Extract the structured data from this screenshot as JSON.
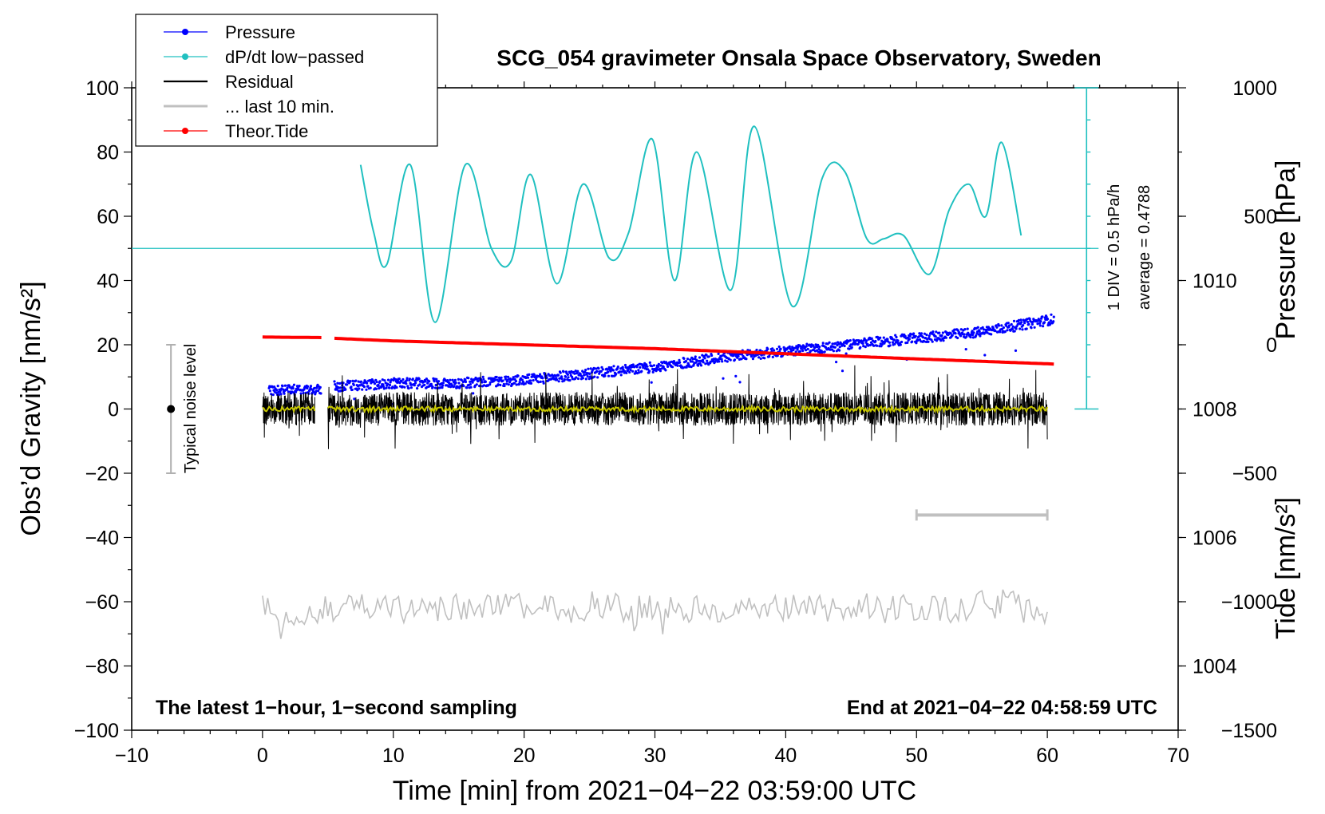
{
  "chart_data": {
    "type": "line",
    "title": "SCG_054 gravimeter Onsala Space Observatory, Sweden",
    "xlabel": "Time [min] from 2021−04−22 03:59:00 UTC",
    "ylabel_left": "Obs’d Gravity [nm/s²]",
    "ylabel_right_upper": "Pressure [hPa]",
    "ylabel_right_lower": "Tide [nm/s²]",
    "xlim": [
      -10,
      70
    ],
    "ylim": [
      -100,
      100
    ],
    "pressure_ylim": [
      1003,
      1013
    ],
    "tide_ylim": [
      -1500,
      1000
    ],
    "x_ticks": [
      -10,
      0,
      10,
      20,
      30,
      40,
      50,
      60,
      70
    ],
    "x_tick_labels": [
      "−10",
      "0",
      "10",
      "20",
      "30",
      "40",
      "50",
      "60",
      "70"
    ],
    "y_ticks": [
      -100,
      -80,
      -60,
      -40,
      -20,
      0,
      20,
      40,
      60,
      80,
      100
    ],
    "y_tick_labels": [
      "−100",
      "−80",
      "−60",
      "−40",
      "−20",
      "0",
      "20",
      "40",
      "60",
      "80",
      "100"
    ],
    "pressure_ticks": [
      1004,
      1006,
      1008,
      1010
    ],
    "pressure_tick_labels": [
      "1004",
      "1006",
      "1008",
      "1010"
    ],
    "tide_ticks": [
      -1500,
      -1000,
      -500,
      0,
      500,
      1000
    ],
    "tide_tick_labels": [
      "−1500",
      "−1000",
      "−500",
      "0",
      "500",
      "1000"
    ],
    "legend": [
      {
        "label": "Pressure",
        "color": "#0000ff",
        "marker": true
      },
      {
        "label": "dP/dt low−passed",
        "color": "#20c0c0",
        "marker": true
      },
      {
        "label": "Residual",
        "color": "#000000",
        "marker": false
      },
      {
        "label": "... last 10 min.",
        "color": "#c0c0c0",
        "marker": false
      },
      {
        "label": "Theor.Tide",
        "color": "#ff0000",
        "marker": true
      }
    ],
    "series": [
      {
        "name": "Pressure",
        "color": "#0000ff",
        "axis": "pressure",
        "x": [
          0.5,
          4.5,
          5.5,
          10,
          15,
          20,
          25,
          30,
          35,
          40,
          45,
          50,
          55,
          60.5
        ],
        "values": [
          1008.3,
          1008.3,
          1008.35,
          1008.4,
          1008.4,
          1008.45,
          1008.55,
          1008.65,
          1008.8,
          1008.9,
          1009.0,
          1009.1,
          1009.2,
          1009.4
        ],
        "gap": [
          4.5,
          5.5
        ]
      },
      {
        "name": "dP/dt low-passed",
        "color": "#20c0c0",
        "axis": "gravity",
        "x": [
          7.5,
          8.5,
          9.5,
          11.3,
          13.2,
          15.5,
          17.5,
          19,
          20.5,
          22.5,
          24.5,
          26.5,
          28,
          29.8,
          31.5,
          33.2,
          35.8,
          37.6,
          40.5,
          42.8,
          44.5,
          46.2,
          47.5,
          49,
          51,
          52.5,
          54,
          55.3,
          56.5,
          58
        ],
        "values": [
          76,
          55,
          45,
          76,
          27,
          76,
          50,
          46,
          73,
          39,
          70,
          47,
          55,
          84,
          40,
          80,
          37,
          88,
          32,
          72,
          74,
          53,
          53,
          54,
          42,
          62,
          70,
          60,
          83,
          54
        ]
      },
      {
        "name": "Residual",
        "color": "#000000",
        "axis": "gravity",
        "x_range": [
          0,
          60
        ],
        "center": 0,
        "amplitude": 8,
        "gap": [
          4,
          5
        ]
      },
      {
        "name": "Residual smoothed",
        "color": "#c8c800",
        "axis": "gravity",
        "x_range": [
          0,
          60
        ],
        "center": 0,
        "amplitude": 1.2,
        "gap": [
          4,
          5
        ]
      },
      {
        "name": "... last 10 min.",
        "color": "#c0c0c0",
        "axis": "gravity",
        "x_range": [
          0,
          60
        ],
        "center": -62,
        "amplitude": 5
      },
      {
        "name": "Theor.Tide",
        "color": "#ff0000",
        "axis": "tide",
        "x": [
          0,
          4.5,
          5.5,
          10,
          20,
          30,
          40,
          50,
          60.5
        ],
        "values": [
          30,
          28,
          25,
          15,
          0,
          -15,
          -35,
          -55,
          -75
        ],
        "gap": [
          4.5,
          5.5
        ]
      }
    ],
    "reference_line": {
      "name": "dP/dt zero level",
      "y": 50,
      "color": "#20c0c0"
    },
    "scale_bar": {
      "label_1": "1 DIV = 0.5 hPa/h",
      "label_2": "average = 0.4788",
      "x": 63,
      "y_from": 0,
      "y_to": 100,
      "color": "#20c0c0"
    },
    "noise_bar": {
      "label": "Typical noise level",
      "x": -7,
      "y_from": -20,
      "y_to": 20,
      "center": 0
    },
    "interval_bar": {
      "x_from": 50,
      "x_to": 60,
      "y": -33,
      "color": "#c0c0c0"
    },
    "notes": {
      "bottom_left": "The latest 1−hour, 1−second sampling",
      "bottom_right": "End at 2021−04−22 04:58:59 UTC"
    }
  }
}
